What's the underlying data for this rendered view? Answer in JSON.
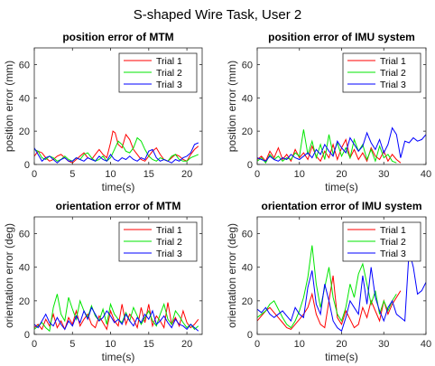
{
  "figure_title": "S-shaped Wire Task, User 2",
  "chart_data": [
    {
      "type": "line",
      "title": "position error of MTM",
      "xlabel": "time(s)",
      "ylabel": "position error (mm)",
      "xlim": [
        0,
        22
      ],
      "ylim": [
        0,
        70
      ],
      "xticks": [
        0,
        5,
        10,
        15,
        20
      ],
      "yticks": [
        0,
        20,
        40,
        60
      ],
      "legend_position": "top-right",
      "series": [
        {
          "name": "Trial 1",
          "color": "#ff0000",
          "x": [
            0,
            0.5,
            1,
            1.5,
            2,
            2.5,
            3,
            3.5,
            4,
            4.5,
            5,
            5.5,
            6,
            6.5,
            7,
            7.5,
            8,
            8.5,
            9,
            9.5,
            10,
            10.3,
            10.6,
            11,
            11.5,
            12,
            12.5,
            13,
            13.5,
            14,
            14.5,
            15,
            15.5,
            16,
            16.5,
            17,
            17.5,
            18,
            18.5,
            19,
            19.5,
            20,
            20.5,
            21,
            21.5
          ],
          "y": [
            5,
            8,
            7,
            4,
            2,
            3,
            5,
            6,
            4,
            2,
            1,
            3,
            5,
            7,
            4,
            3,
            6,
            9,
            6,
            4,
            13,
            20,
            19,
            12,
            10,
            18,
            15,
            9,
            6,
            3,
            2,
            5,
            8,
            10,
            6,
            3,
            2,
            4,
            6,
            5,
            3,
            2,
            6,
            9,
            11
          ]
        },
        {
          "name": "Trial 2",
          "color": "#00e600",
          "x": [
            0,
            0.5,
            1,
            1.5,
            2,
            2.5,
            3,
            3.5,
            4,
            4.5,
            5,
            5.5,
            6,
            6.5,
            7,
            7.5,
            8,
            8.5,
            9,
            9.5,
            10,
            10.5,
            11,
            11.5,
            12,
            12.5,
            13,
            13.5,
            14,
            14.5,
            15,
            15.5,
            16,
            16.5,
            17,
            17.5,
            18,
            18.5,
            19,
            19.5,
            20,
            20.5,
            21,
            21.5
          ],
          "y": [
            9,
            8,
            4,
            3,
            5,
            4,
            2,
            3,
            5,
            3,
            2,
            4,
            3,
            6,
            7,
            4,
            2,
            3,
            5,
            2,
            4,
            9,
            14,
            12,
            8,
            7,
            10,
            16,
            14,
            9,
            5,
            3,
            2,
            4,
            3,
            2,
            5,
            6,
            3,
            2,
            2,
            4,
            5,
            6
          ]
        },
        {
          "name": "Trial 3",
          "color": "#0000ff",
          "x": [
            0,
            0.5,
            1,
            1.5,
            2,
            2.5,
            3,
            3.5,
            4,
            4.5,
            5,
            5.5,
            6,
            6.5,
            7,
            7.5,
            8,
            8.5,
            9,
            9.5,
            10,
            10.5,
            11,
            11.5,
            12,
            12.5,
            13,
            13.5,
            14,
            14.5,
            15,
            15.5,
            16,
            16.5,
            17,
            17.5,
            18,
            18.5,
            19,
            19.5,
            20,
            20.5,
            21,
            21.5
          ],
          "y": [
            10,
            6,
            2,
            4,
            5,
            3,
            1,
            3,
            4,
            2,
            2,
            4,
            3,
            2,
            4,
            3,
            2,
            5,
            3,
            2,
            6,
            3,
            2,
            4,
            3,
            5,
            3,
            2,
            4,
            3,
            8,
            9,
            4,
            2,
            3,
            2,
            1,
            3,
            2,
            4,
            5,
            7,
            12,
            13
          ]
        }
      ]
    },
    {
      "type": "line",
      "title": "position error of IMU system",
      "xlabel": "time(s)",
      "ylabel": "position error (mm)",
      "xlim": [
        0,
        40
      ],
      "ylim": [
        0,
        70
      ],
      "xticks": [
        0,
        10,
        20,
        30,
        40
      ],
      "yticks": [
        0,
        20,
        40,
        60
      ],
      "legend_position": "top-right",
      "series": [
        {
          "name": "Trial 1",
          "color": "#ff0000",
          "x": [
            0,
            1,
            2,
            3,
            4,
            5,
            6,
            7,
            8,
            9,
            10,
            11,
            12,
            13,
            14,
            15,
            16,
            17,
            18,
            19,
            20,
            21,
            22,
            23,
            24,
            25,
            26,
            27,
            28,
            29,
            30,
            31,
            32,
            33,
            34
          ],
          "y": [
            3,
            5,
            2,
            8,
            4,
            10,
            3,
            6,
            2,
            9,
            4,
            7,
            3,
            11,
            5,
            2,
            8,
            4,
            12,
            3,
            10,
            15,
            4,
            9,
            3,
            7,
            2,
            10,
            5,
            3,
            8,
            2,
            6,
            3,
            1
          ]
        },
        {
          "name": "Trial 2",
          "color": "#00e600",
          "x": [
            0,
            1,
            2,
            3,
            4,
            5,
            6,
            7,
            8,
            9,
            10,
            11,
            12,
            13,
            14,
            15,
            16,
            17,
            18,
            19,
            20,
            21,
            22,
            23,
            24,
            25,
            26,
            27,
            28,
            29,
            30,
            31,
            32,
            33
          ],
          "y": [
            2,
            4,
            1,
            6,
            3,
            5,
            2,
            4,
            3,
            7,
            5,
            21,
            6,
            14,
            4,
            12,
            3,
            18,
            6,
            13,
            5,
            10,
            4,
            15,
            8,
            12,
            3,
            9,
            2,
            11,
            4,
            6,
            2,
            1
          ]
        },
        {
          "name": "Trial 3",
          "color": "#0000ff",
          "x": [
            0,
            1,
            2,
            3,
            4,
            5,
            6,
            7,
            8,
            9,
            10,
            11,
            12,
            13,
            14,
            15,
            16,
            17,
            18,
            19,
            20,
            21,
            22,
            23,
            24,
            25,
            26,
            27,
            28,
            29,
            30,
            31,
            32,
            33,
            34,
            35,
            36,
            37,
            38,
            39,
            40
          ],
          "y": [
            4,
            3,
            2,
            5,
            3,
            2,
            4,
            3,
            6,
            4,
            3,
            5,
            7,
            4,
            9,
            6,
            12,
            8,
            5,
            14,
            10,
            7,
            16,
            12,
            8,
            11,
            19,
            13,
            9,
            15,
            7,
            12,
            22,
            18,
            4,
            14,
            13,
            16,
            14,
            15,
            18
          ]
        }
      ]
    },
    {
      "type": "line",
      "title": "orientation error of MTM",
      "xlabel": "time(s)",
      "ylabel": "orientation error (deg)",
      "xlim": [
        0,
        22
      ],
      "ylim": [
        0,
        70
      ],
      "xticks": [
        0,
        5,
        10,
        15,
        20
      ],
      "yticks": [
        0,
        20,
        40,
        60
      ],
      "legend_position": "top-right",
      "series": [
        {
          "name": "Trial 1",
          "color": "#ff0000",
          "x": [
            0,
            0.5,
            1,
            1.5,
            2,
            2.5,
            3,
            3.5,
            4,
            4.5,
            5,
            5.5,
            6,
            6.5,
            7,
            7.5,
            8,
            8.5,
            9,
            9.5,
            10,
            10.5,
            11,
            11.5,
            12,
            12.5,
            13,
            13.5,
            14,
            14.5,
            15,
            15.5,
            16,
            16.5,
            17,
            17.5,
            18,
            18.5,
            19,
            19.5,
            20,
            20.5,
            21,
            21.5
          ],
          "y": [
            4,
            6,
            3,
            9,
            5,
            12,
            4,
            8,
            3,
            10,
            6,
            14,
            5,
            9,
            12,
            6,
            4,
            11,
            7,
            3,
            14,
            8,
            5,
            18,
            6,
            12,
            9,
            4,
            16,
            7,
            18,
            5,
            11,
            8,
            4,
            19,
            6,
            10,
            5,
            14,
            7,
            4,
            6,
            9
          ]
        },
        {
          "name": "Trial 2",
          "color": "#00e600",
          "x": [
            0,
            0.5,
            1,
            1.5,
            2,
            2.5,
            3,
            3.5,
            4,
            4.5,
            5,
            5.5,
            6,
            6.5,
            7,
            7.5,
            8,
            8.5,
            9,
            9.5,
            10,
            10.5,
            11,
            11.5,
            12,
            12.5,
            13,
            13.5,
            14,
            14.5,
            15,
            15.5,
            16,
            16.5,
            17,
            17.5,
            18,
            18.5,
            19,
            19.5,
            20,
            20.5,
            21,
            21.5
          ],
          "y": [
            3,
            5,
            7,
            4,
            2,
            16,
            24,
            12,
            8,
            22,
            15,
            9,
            20,
            14,
            10,
            17,
            11,
            8,
            15,
            6,
            18,
            12,
            9,
            7,
            13,
            8,
            16,
            11,
            6,
            10,
            14,
            8,
            5,
            12,
            18,
            9,
            6,
            14,
            11,
            7,
            4,
            6,
            3,
            5
          ]
        },
        {
          "name": "Trial 3",
          "color": "#0000ff",
          "x": [
            0,
            0.5,
            1,
            1.5,
            2,
            2.5,
            3,
            3.5,
            4,
            4.5,
            5,
            5.5,
            6,
            6.5,
            7,
            7.5,
            8,
            8.5,
            9,
            9.5,
            10,
            10.5,
            11,
            11.5,
            12,
            12.5,
            13,
            13.5,
            14,
            14.5,
            15,
            15.5,
            16,
            16.5,
            17,
            17.5,
            18,
            18.5,
            19,
            19.5,
            20,
            20.5,
            21,
            21.5
          ],
          "y": [
            6,
            4,
            8,
            12,
            7,
            5,
            10,
            6,
            3,
            8,
            5,
            11,
            7,
            14,
            9,
            16,
            12,
            8,
            10,
            14,
            11,
            7,
            9,
            6,
            12,
            8,
            5,
            10,
            7,
            12,
            9,
            14,
            6,
            8,
            11,
            7,
            4,
            9,
            6,
            5,
            3,
            6,
            4,
            2
          ]
        }
      ]
    },
    {
      "type": "line",
      "title": "orientation error of IMU system",
      "xlabel": "time(s)",
      "ylabel": "orientation error (deg)",
      "xlim": [
        0,
        40
      ],
      "ylim": [
        0,
        70
      ],
      "xticks": [
        0,
        10,
        20,
        30,
        40
      ],
      "yticks": [
        0,
        20,
        40,
        60
      ],
      "legend_position": "top-right",
      "series": [
        {
          "name": "Trial 1",
          "color": "#ff0000",
          "x": [
            0,
            1,
            2,
            3,
            4,
            5,
            6,
            7,
            8,
            9,
            10,
            11,
            12,
            13,
            14,
            15,
            16,
            17,
            18,
            19,
            20,
            21,
            22,
            23,
            24,
            25,
            26,
            27,
            28,
            29,
            30,
            31,
            32,
            33,
            34
          ],
          "y": [
            8,
            11,
            14,
            16,
            13,
            10,
            7,
            4,
            3,
            6,
            9,
            12,
            16,
            24,
            12,
            6,
            4,
            20,
            35,
            10,
            6,
            14,
            9,
            4,
            6,
            16,
            10,
            20,
            14,
            8,
            20,
            12,
            18,
            22,
            26
          ]
        },
        {
          "name": "Trial 2",
          "color": "#00e600",
          "x": [
            0,
            1,
            2,
            3,
            4,
            5,
            6,
            7,
            8,
            9,
            10,
            11,
            12,
            13,
            14,
            15,
            16,
            17,
            18,
            19,
            20,
            21,
            22,
            23,
            24,
            25,
            26,
            27,
            28,
            29,
            30,
            31,
            32,
            33
          ],
          "y": [
            10,
            12,
            14,
            18,
            20,
            15,
            10,
            6,
            4,
            8,
            14,
            22,
            34,
            53,
            30,
            16,
            28,
            40,
            22,
            12,
            8,
            16,
            30,
            22,
            36,
            42,
            30,
            18,
            26,
            12,
            20,
            14,
            20,
            24
          ]
        },
        {
          "name": "Trial 3",
          "color": "#0000ff",
          "x": [
            0,
            1,
            2,
            3,
            4,
            5,
            6,
            7,
            8,
            9,
            10,
            11,
            12,
            13,
            14,
            15,
            16,
            17,
            18,
            19,
            20,
            21,
            22,
            23,
            24,
            25,
            26,
            27,
            28,
            29,
            30,
            31,
            32,
            33,
            34,
            35,
            36,
            37,
            38,
            39,
            40
          ],
          "y": [
            15,
            13,
            16,
            12,
            10,
            12,
            14,
            11,
            8,
            16,
            12,
            10,
            28,
            38,
            18,
            12,
            30,
            20,
            8,
            4,
            2,
            10,
            20,
            16,
            12,
            35,
            18,
            40,
            22,
            14,
            8,
            16,
            20,
            12,
            10,
            8,
            50,
            40,
            24,
            26,
            31
          ]
        }
      ]
    }
  ]
}
